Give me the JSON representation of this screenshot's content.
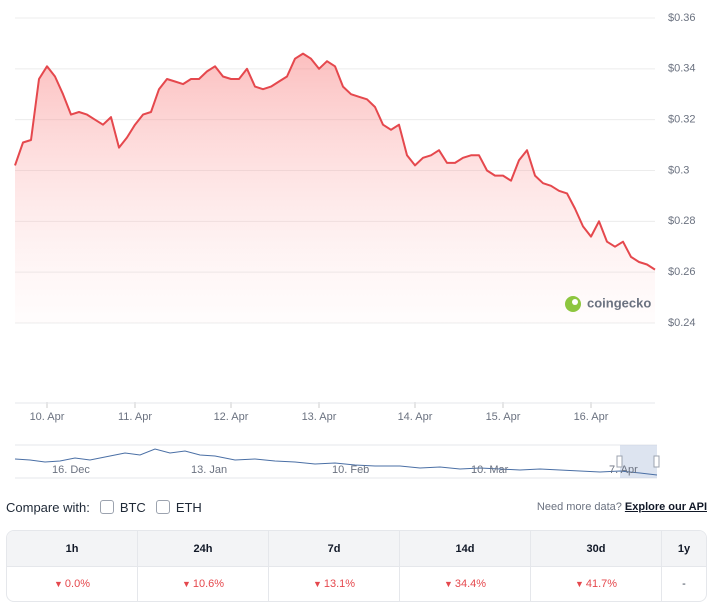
{
  "chart_data": {
    "type": "line",
    "color": "#e5484d",
    "grid": true,
    "categories": [
      null,
      null,
      null,
      null,
      "10. Apr",
      null,
      null,
      null,
      null,
      null,
      null,
      null,
      null,
      null,
      null,
      "11. Apr",
      null,
      null,
      null,
      null,
      null,
      null,
      null,
      null,
      null,
      null,
      null,
      "12. Apr",
      null,
      null,
      null,
      null,
      null,
      null,
      null,
      null,
      null,
      null,
      "13. Apr",
      null,
      null,
      null,
      null,
      null,
      null,
      null,
      null,
      null,
      null,
      null,
      "14. Apr",
      null,
      null,
      null,
      null,
      null,
      null,
      null,
      null,
      null,
      null,
      "15. Apr",
      null,
      null,
      null,
      null,
      null,
      null,
      null,
      null,
      null,
      null,
      "16. Apr",
      null,
      null,
      null,
      null,
      null,
      null,
      null,
      null
    ],
    "values": [
      0.302,
      0.311,
      0.312,
      0.336,
      0.341,
      0.337,
      0.33,
      0.322,
      0.323,
      0.322,
      0.32,
      0.318,
      0.321,
      0.309,
      0.313,
      0.318,
      0.322,
      0.323,
      0.332,
      0.336,
      0.335,
      0.334,
      0.336,
      0.336,
      0.339,
      0.341,
      0.337,
      0.336,
      0.336,
      0.34,
      0.333,
      0.332,
      0.333,
      0.335,
      0.337,
      0.344,
      0.346,
      0.344,
      0.34,
      0.343,
      0.341,
      0.333,
      0.33,
      0.329,
      0.328,
      0.325,
      0.318,
      0.316,
      0.318,
      0.306,
      0.302,
      0.305,
      0.306,
      0.308,
      0.303,
      0.303,
      0.305,
      0.306,
      0.306,
      0.3,
      0.298,
      0.298,
      0.296,
      0.304,
      0.308,
      0.298,
      0.295,
      0.294,
      0.292,
      0.291,
      0.285,
      0.278,
      0.274,
      0.28,
      0.272,
      0.27,
      0.272,
      0.266,
      0.264,
      0.263,
      0.261
    ],
    "ylim": [
      0.24,
      0.36
    ],
    "yticks": [
      {
        "value": 0.24,
        "label": "$0.24"
      },
      {
        "value": 0.26,
        "label": "$0.26"
      },
      {
        "value": 0.28,
        "label": "$0.28"
      },
      {
        "value": 0.3,
        "label": "$0.3"
      },
      {
        "value": 0.32,
        "label": "$0.32"
      },
      {
        "value": 0.34,
        "label": "$0.34"
      },
      {
        "value": 0.36,
        "label": "$0.36"
      }
    ],
    "watermark": "coingecko",
    "navigator_labels": [
      "16. Dec",
      "13. Jan",
      "10. Feb",
      "10. Mar",
      "7. Apr"
    ]
  },
  "compare": {
    "label": "Compare with:",
    "options": [
      "BTC",
      "ETH"
    ],
    "more": "Need more data?",
    "link": "Explore our API"
  },
  "performance_table": {
    "headers": [
      "1h",
      "24h",
      "7d",
      "14d",
      "30d",
      "1y"
    ],
    "values": [
      "0.0%",
      "10.6%",
      "13.1%",
      "34.4%",
      "41.7%",
      "-"
    ]
  }
}
